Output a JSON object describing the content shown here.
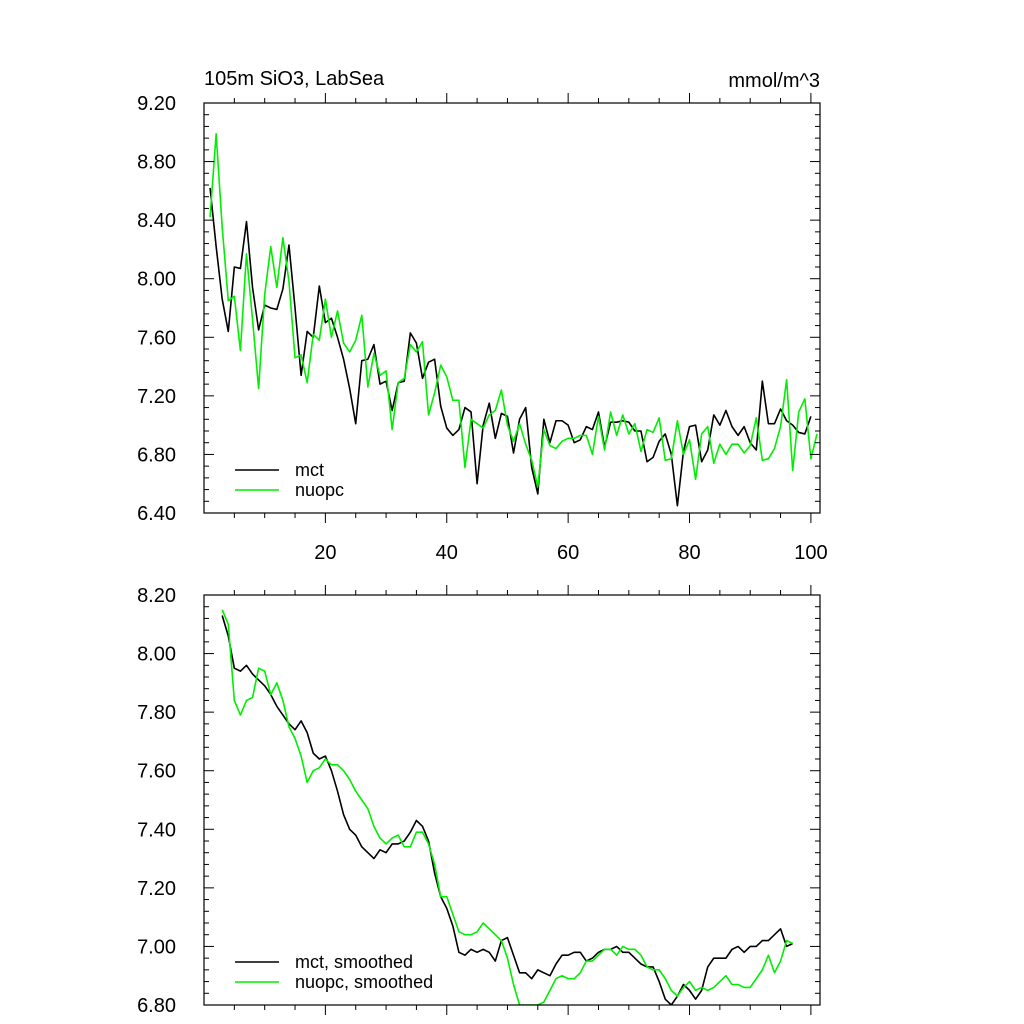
{
  "chart_data": [
    {
      "type": "line",
      "title": "105m SiO3, LabSea",
      "units_label": "mmol/m^3",
      "xlabel": "",
      "ylabel": "",
      "xlim": [
        0,
        101.5
      ],
      "ylim": [
        6.4,
        9.2
      ],
      "x_ticks": [
        20,
        40,
        60,
        80,
        100
      ],
      "x_tick_labels": [
        "20",
        "40",
        "60",
        "80",
        "100"
      ],
      "y_ticks": [
        6.4,
        6.8,
        7.2,
        7.6,
        8.0,
        8.4,
        8.8,
        9.2
      ],
      "y_tick_labels": [
        "6.40",
        "6.80",
        "7.20",
        "7.60",
        "8.00",
        "8.40",
        "8.80",
        "9.20"
      ],
      "legend_position": "bottom-left",
      "grid": false,
      "series": [
        {
          "name": "mct",
          "color": "#000000",
          "x_start": 1,
          "values": [
            8.62,
            8.22,
            7.86,
            7.64,
            8.08,
            8.07,
            8.39,
            7.94,
            7.65,
            7.82,
            7.8,
            7.79,
            7.93,
            8.23,
            7.8,
            7.34,
            7.64,
            7.6,
            7.95,
            7.7,
            7.73,
            7.6,
            7.45,
            7.25,
            7.01,
            7.44,
            7.45,
            7.55,
            7.28,
            7.3,
            7.1,
            7.29,
            7.3,
            7.63,
            7.56,
            7.32,
            7.43,
            7.45,
            7.13,
            6.98,
            6.93,
            6.97,
            7.12,
            7.09,
            6.6,
            7.0,
            7.15,
            6.91,
            7.08,
            7.06,
            6.81,
            7.04,
            7.12,
            6.71,
            6.53,
            7.04,
            6.88,
            7.03,
            7.03,
            7.0,
            6.88,
            6.9,
            6.99,
            6.97,
            7.09,
            6.85,
            7.02,
            7.02,
            7.03,
            7.02,
            6.96,
            6.96,
            6.75,
            6.78,
            6.89,
            6.94,
            6.8,
            6.45,
            6.82,
            6.99,
            7.0,
            6.75,
            6.83,
            7.07,
            7.0,
            7.1,
            6.99,
            6.93,
            6.99,
            6.88,
            6.83,
            7.3,
            7.01,
            7.01,
            7.11,
            7.03,
            7.0,
            6.95,
            6.94,
            7.06
          ]
        },
        {
          "name": "nuopc",
          "color": "#00ee00",
          "x_start": 1,
          "values": [
            8.42,
            8.99,
            8.35,
            7.85,
            7.88,
            7.51,
            8.17,
            7.72,
            7.25,
            7.89,
            8.22,
            7.94,
            8.28,
            7.98,
            7.46,
            7.48,
            7.29,
            7.62,
            7.58,
            7.86,
            7.6,
            7.78,
            7.56,
            7.5,
            7.58,
            7.75,
            7.26,
            7.49,
            7.34,
            7.37,
            6.97,
            7.29,
            7.32,
            7.55,
            7.5,
            7.57,
            7.07,
            7.22,
            7.41,
            7.33,
            7.17,
            7.17,
            6.71,
            7.04,
            7.01,
            6.98,
            7.07,
            7.1,
            7.24,
            7.0,
            6.89,
            7.01,
            6.87,
            6.76,
            6.58,
            6.97,
            6.86,
            6.84,
            6.89,
            6.91,
            6.91,
            6.93,
            6.93,
            6.8,
            7.06,
            6.83,
            7.09,
            6.93,
            7.07,
            6.94,
            7.01,
            6.82,
            6.97,
            6.95,
            7.05,
            6.76,
            6.77,
            7.03,
            6.8,
            6.9,
            6.63,
            6.94,
            6.99,
            6.74,
            6.87,
            6.8,
            6.87,
            6.87,
            6.81,
            6.86,
            7.05,
            6.76,
            6.77,
            6.84,
            6.99,
            7.31,
            6.69,
            7.09,
            7.18,
            6.77,
            6.94
          ]
        }
      ]
    },
    {
      "type": "line",
      "title": "",
      "xlabel": "",
      "ylabel": "",
      "xlim": [
        0,
        101.5
      ],
      "ylim": [
        6.8,
        8.2
      ],
      "x_ticks": [
        20,
        40,
        60,
        80,
        100
      ],
      "y_ticks": [
        6.8,
        7.0,
        7.2,
        7.4,
        7.6,
        7.8,
        8.0,
        8.2
      ],
      "y_tick_labels": [
        "6.80",
        "7.00",
        "7.20",
        "7.40",
        "7.60",
        "7.80",
        "8.00",
        "8.20"
      ],
      "legend_position": "bottom-left",
      "grid": false,
      "series": [
        {
          "name": "mct, smoothed",
          "color": "#000000",
          "x_start": 3,
          "values": [
            8.13,
            8.06,
            7.95,
            7.94,
            7.96,
            7.93,
            7.91,
            7.89,
            7.86,
            7.82,
            7.79,
            7.76,
            7.74,
            7.77,
            7.73,
            7.66,
            7.64,
            7.65,
            7.6,
            7.53,
            7.45,
            7.4,
            7.38,
            7.34,
            7.32,
            7.3,
            7.33,
            7.32,
            7.35,
            7.35,
            7.36,
            7.39,
            7.43,
            7.41,
            7.36,
            7.25,
            7.17,
            7.13,
            7.07,
            6.98,
            6.97,
            6.99,
            6.98,
            6.99,
            6.98,
            6.95,
            7.02,
            7.03,
            6.97,
            6.91,
            6.91,
            6.89,
            6.92,
            6.91,
            6.9,
            6.94,
            6.97,
            6.97,
            6.98,
            6.98,
            6.95,
            6.96,
            6.98,
            6.99,
            6.99,
            7.0,
            6.98,
            6.98,
            6.96,
            6.94,
            6.93,
            6.93,
            6.88,
            6.82,
            6.8,
            6.83,
            6.87,
            6.85,
            6.82,
            6.85,
            6.93,
            6.96,
            6.96,
            6.96,
            6.99,
            7.0,
            6.98,
            7.0,
            7.0,
            7.02,
            7.02,
            7.04,
            7.06,
            7.0,
            7.01
          ]
        },
        {
          "name": "nuopc, smoothed",
          "color": "#00ee00",
          "x_start": 3,
          "values": [
            8.15,
            8.1,
            7.84,
            7.79,
            7.84,
            7.85,
            7.95,
            7.94,
            7.86,
            7.9,
            7.84,
            7.75,
            7.71,
            7.65,
            7.56,
            7.6,
            7.61,
            7.64,
            7.62,
            7.62,
            7.6,
            7.57,
            7.53,
            7.5,
            7.47,
            7.41,
            7.37,
            7.35,
            7.37,
            7.38,
            7.34,
            7.34,
            7.39,
            7.39,
            7.35,
            7.28,
            7.17,
            7.17,
            7.11,
            7.05,
            7.04,
            7.04,
            7.05,
            7.08,
            7.06,
            7.04,
            7.02,
            6.96,
            6.87,
            6.8,
            6.8,
            6.8,
            6.8,
            6.81,
            6.85,
            6.89,
            6.9,
            6.89,
            6.89,
            6.91,
            6.95,
            6.95,
            6.97,
            6.99,
            6.99,
            6.97,
            7.0,
            6.99,
            6.99,
            6.97,
            6.93,
            6.92,
            6.92,
            6.89,
            6.85,
            6.83,
            6.86,
            6.88,
            6.85,
            6.86,
            6.85,
            6.86,
            6.88,
            6.9,
            6.87,
            6.87,
            6.86,
            6.86,
            6.89,
            6.92,
            6.97,
            6.91,
            6.95,
            7.02,
            7.01
          ]
        }
      ]
    }
  ]
}
